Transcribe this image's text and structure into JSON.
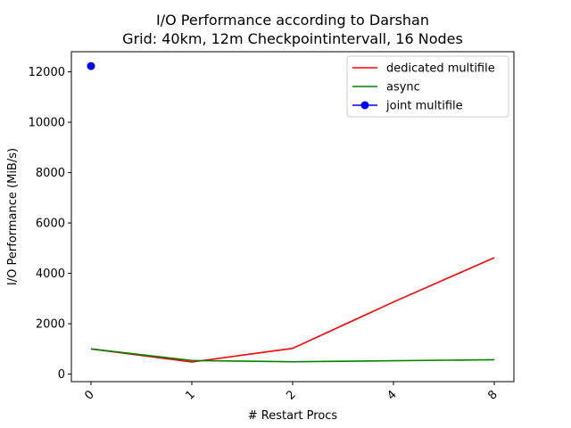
{
  "chart_data": {
    "type": "line",
    "title": "I/O Performance according to Darshan",
    "subtitle": "Grid: 40km, 12m Checkpointintervall, 16 Nodes",
    "xlabel": "# Restart Procs",
    "ylabel": "I/O Performance (MiB/s)",
    "categories": [
      "0",
      "1",
      "2",
      "4",
      "8"
    ],
    "ylim": [
      -300,
      12800
    ],
    "yticks": [
      0,
      2000,
      4000,
      6000,
      8000,
      10000,
      12000
    ],
    "grid": false,
    "legend_position": "top-right",
    "series": [
      {
        "name": "dedicated multifile",
        "color": "#ff0000",
        "marker": "none",
        "values": [
          1000,
          480,
          1020,
          2860,
          4620
        ]
      },
      {
        "name": "async",
        "color": "#008000",
        "marker": "none",
        "values": [
          1000,
          540,
          490,
          530,
          570
        ]
      },
      {
        "name": "joint multifile",
        "color": "#0000ff",
        "marker": "circle",
        "values": [
          12230,
          null,
          null,
          null,
          null
        ]
      }
    ]
  }
}
